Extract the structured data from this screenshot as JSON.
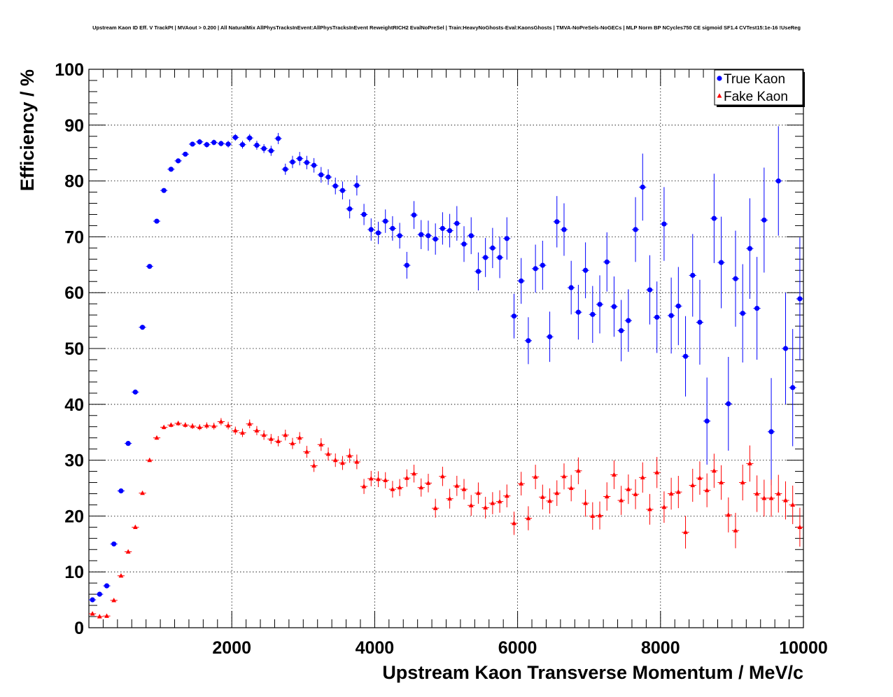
{
  "chart_data": {
    "type": "scatter",
    "title": "Upstream Kaon ID Eff. V TrackPt | MVAout > 0.200 | All NaturalMix AllPhysTracksInEvent:AllPhysTracksInEvent ReweightRICH2 EvalNoPreSel | Train:HeavyNoGhosts-Eval:KaonsGhosts | TMVA-NoPreSels-NoGECs | MLP Norm BP NCycles750 CE sigmoid SF1.4 CVTest15:1e-16 !UseReg",
    "xlabel": "Upstream Kaon Transverse Momentum / MeV/c",
    "ylabel": "Efficiency / %",
    "xlim": [
      0,
      10000
    ],
    "ylim": [
      0,
      100
    ],
    "xticks": [
      2000,
      4000,
      6000,
      8000,
      10000
    ],
    "yticks": [
      0,
      10,
      20,
      30,
      40,
      50,
      60,
      70,
      80,
      90,
      100
    ],
    "grid": true,
    "legend_position": "top-right",
    "x": [
      50,
      150,
      250,
      350,
      450,
      550,
      650,
      750,
      850,
      950,
      1050,
      1150,
      1250,
      1350,
      1450,
      1550,
      1650,
      1750,
      1850,
      1950,
      2050,
      2150,
      2250,
      2350,
      2450,
      2550,
      2650,
      2750,
      2850,
      2950,
      3050,
      3150,
      3250,
      3350,
      3450,
      3550,
      3650,
      3750,
      3850,
      3950,
      4050,
      4150,
      4250,
      4350,
      4450,
      4550,
      4650,
      4750,
      4850,
      4950,
      5050,
      5150,
      5250,
      5350,
      5450,
      5550,
      5650,
      5750,
      5850,
      5950,
      6050,
      6150,
      6250,
      6350,
      6450,
      6550,
      6650,
      6750,
      6850,
      6950,
      7050,
      7150,
      7250,
      7350,
      7450,
      7550,
      7650,
      7750,
      7850,
      7950,
      8050,
      8150,
      8250,
      8350,
      8450,
      8550,
      8650,
      8750,
      8850,
      8950,
      9050,
      9150,
      9250,
      9350,
      9450,
      9550,
      9650,
      9750,
      9850,
      9950
    ],
    "series": [
      {
        "name": "True Kaon",
        "color": "#0000ff",
        "marker": "circle",
        "values": [
          5.0,
          6.0,
          7.5,
          15.0,
          24.5,
          33.0,
          42.2,
          53.8,
          64.7,
          72.8,
          78.3,
          82.1,
          83.6,
          84.8,
          86.6,
          87.0,
          86.5,
          86.9,
          86.7,
          86.6,
          87.8,
          86.5,
          87.7,
          86.4,
          85.8,
          85.4,
          87.6,
          82.1,
          83.4,
          84.0,
          83.3,
          82.8,
          81.1,
          80.7,
          79.1,
          78.3,
          75.0,
          79.2,
          74.0,
          71.3,
          70.7,
          72.8,
          71.5,
          70.2,
          64.9,
          73.9,
          70.4,
          70.2,
          69.6,
          71.5,
          71.1,
          72.4,
          68.7,
          70.2,
          63.8,
          66.3,
          68.0,
          66.3,
          69.7,
          55.8,
          62.1,
          51.4,
          64.3,
          64.9,
          52.1,
          72.7,
          71.3,
          60.9,
          56.5,
          64.0,
          56.1,
          57.9,
          65.5,
          57.5,
          53.2,
          55.0,
          71.3,
          78.9,
          60.5,
          55.6,
          72.3,
          55.9,
          57.6,
          48.6,
          63.1,
          54.7,
          37.0,
          73.3,
          65.4,
          40.1,
          62.5,
          56.3,
          67.9,
          57.2,
          73.0,
          35.1,
          80.0,
          50.0,
          43.0,
          58.9
        ],
        "errors": [
          0.3,
          0.3,
          0.4,
          0.4,
          0.4,
          0.4,
          0.4,
          0.4,
          0.4,
          0.4,
          0.4,
          0.4,
          0.4,
          0.4,
          0.4,
          0.5,
          0.5,
          0.5,
          0.5,
          0.6,
          0.6,
          0.7,
          0.7,
          0.8,
          0.8,
          0.9,
          1.0,
          1.0,
          1.1,
          1.2,
          1.2,
          1.3,
          1.4,
          1.4,
          1.5,
          1.6,
          1.7,
          1.8,
          1.9,
          2.0,
          2.0,
          2.1,
          2.2,
          2.3,
          2.4,
          2.5,
          2.6,
          2.7,
          2.8,
          2.9,
          3.0,
          3.1,
          3.2,
          3.3,
          3.4,
          3.5,
          3.6,
          3.7,
          3.8,
          4.0,
          4.1,
          4.2,
          4.3,
          4.4,
          4.5,
          4.6,
          4.7,
          4.8,
          4.9,
          5.0,
          5.1,
          5.2,
          5.3,
          5.4,
          5.5,
          5.6,
          5.8,
          6.0,
          6.2,
          6.4,
          6.6,
          6.8,
          7.0,
          7.2,
          7.4,
          7.6,
          7.8,
          8.0,
          8.2,
          8.4,
          8.6,
          8.8,
          9.0,
          9.2,
          9.4,
          9.6,
          9.8,
          10.0,
          10.5,
          11.0
        ]
      },
      {
        "name": "Fake Kaon",
        "color": "#ff0000",
        "marker": "triangle",
        "values": [
          2.5,
          2.0,
          2.1,
          4.9,
          9.3,
          13.6,
          18.0,
          24.1,
          30.0,
          34.0,
          35.9,
          36.3,
          36.6,
          36.3,
          36.1,
          35.9,
          36.2,
          36.1,
          36.9,
          36.2,
          35.3,
          34.9,
          36.5,
          35.3,
          34.5,
          33.8,
          33.4,
          34.5,
          33.0,
          34.0,
          31.5,
          29.0,
          32.8,
          31.1,
          30.0,
          29.5,
          30.8,
          29.7,
          25.3,
          26.7,
          26.6,
          26.4,
          24.8,
          25.1,
          26.8,
          27.6,
          25.1,
          25.9,
          21.4,
          27.1,
          23.1,
          25.4,
          24.8,
          21.9,
          24.1,
          21.5,
          22.3,
          22.6,
          23.6,
          18.7,
          25.8,
          19.6,
          27.0,
          23.4,
          22.7,
          24.1,
          27.1,
          25.0,
          28.1,
          22.3,
          20.0,
          20.1,
          23.5,
          27.4,
          22.8,
          24.8,
          23.9,
          26.9,
          21.2,
          27.8,
          21.6,
          24.0,
          24.3,
          17.1,
          25.5,
          26.8,
          24.6,
          28.1,
          26.0,
          20.2,
          17.4,
          26.0,
          29.4,
          24.0,
          23.2,
          23.2,
          24.0,
          22.8,
          22.0,
          18.0
        ]
      }
    ]
  }
}
